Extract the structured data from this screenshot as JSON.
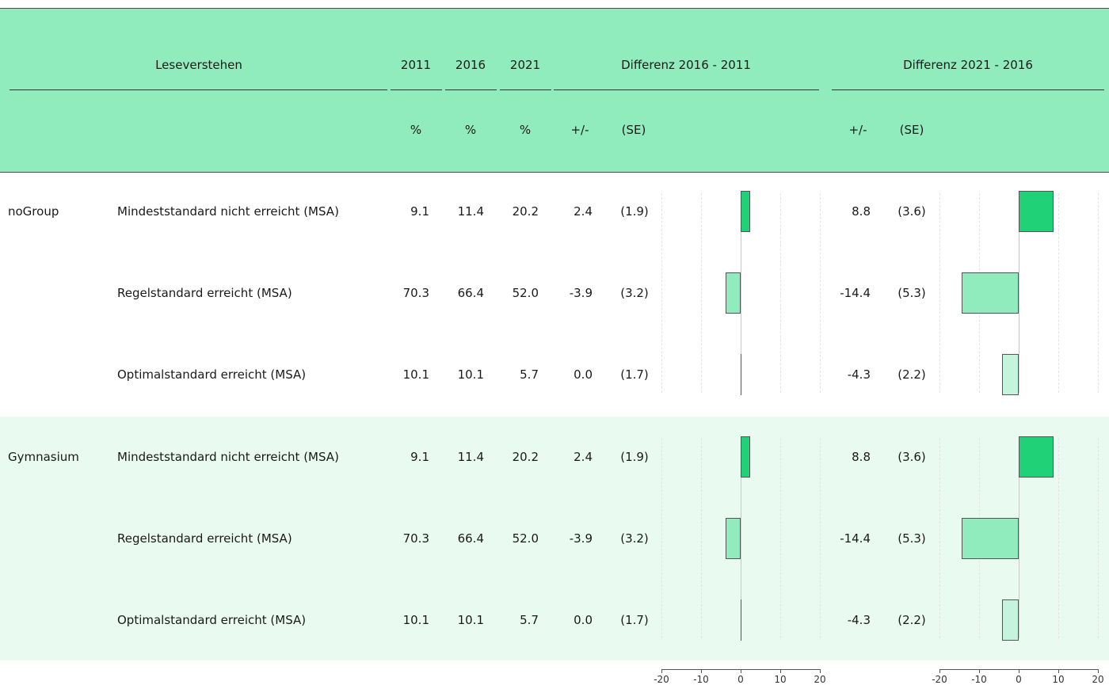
{
  "header": {
    "title": "Leseverstehen",
    "years": [
      "2011",
      "2016",
      "2021"
    ],
    "diff1_title": "Differenz 2016 - 2011",
    "diff2_title": "Differenz 2021 - 2016",
    "unit_pct": "%",
    "unit_diff": "+/-",
    "unit_se": "(SE)"
  },
  "colors": {
    "header_bg": "#90ebbd",
    "group_alt_bg": "#e9faf1",
    "bar_significant_up": "#20d178",
    "bar_significant_down": "#90ebbd",
    "bar_not_significant": "#c4f5dc"
  },
  "groups": [
    {
      "name": "noGroup",
      "rows": [
        {
          "label": "Mindeststandard nicht erreicht (MSA)",
          "y2011": "9.1",
          "y2016": "11.4",
          "y2021": "20.2",
          "d1": "2.4",
          "se1": "(1.9)",
          "d2": "8.8",
          "se2": "(3.6)"
        },
        {
          "label": "Regelstandard erreicht (MSA)",
          "y2011": "70.3",
          "y2016": "66.4",
          "y2021": "52.0",
          "d1": "-3.9",
          "se1": "(3.2)",
          "d2": "-14.4",
          "se2": "(5.3)"
        },
        {
          "label": "Optimalstandard erreicht (MSA)",
          "y2011": "10.1",
          "y2016": "10.1",
          "y2021": "5.7",
          "d1": "0.0",
          "se1": "(1.7)",
          "d2": "-4.3",
          "se2": "(2.2)"
        }
      ]
    },
    {
      "name": "Gymnasium",
      "rows": [
        {
          "label": "Mindeststandard nicht erreicht (MSA)",
          "y2011": "9.1",
          "y2016": "11.4",
          "y2021": "20.2",
          "d1": "2.4",
          "se1": "(1.9)",
          "d2": "8.8",
          "se2": "(3.6)"
        },
        {
          "label": "Regelstandard erreicht (MSA)",
          "y2011": "70.3",
          "y2016": "66.4",
          "y2021": "52.0",
          "d1": "-3.9",
          "se1": "(3.2)",
          "d2": "-14.4",
          "se2": "(5.3)"
        },
        {
          "label": "Optimalstandard erreicht (MSA)",
          "y2011": "10.1",
          "y2016": "10.1",
          "y2021": "5.7",
          "d1": "0.0",
          "se1": "(1.7)",
          "d2": "-4.3",
          "se2": "(2.2)"
        }
      ]
    }
  ],
  "chart_data": [
    {
      "type": "bar",
      "orientation": "horizontal",
      "title": "Differenz 2016 - 2011",
      "categories": [
        "noGroup - Mindeststandard nicht erreicht (MSA)",
        "noGroup - Regelstandard erreicht (MSA)",
        "noGroup - Optimalstandard erreicht (MSA)",
        "Gymnasium - Mindeststandard nicht erreicht (MSA)",
        "Gymnasium - Regelstandard erreicht (MSA)",
        "Gymnasium - Optimalstandard erreicht (MSA)"
      ],
      "values": [
        2.4,
        -3.9,
        0.0,
        2.4,
        -3.9,
        0.0
      ],
      "colors": [
        "#20d178",
        "#90ebbd",
        "#c4f5dc",
        "#20d178",
        "#90ebbd",
        "#c4f5dc"
      ],
      "xlim": [
        -20,
        20
      ],
      "xticks": [
        "-20",
        "-10",
        "0",
        "10",
        "20"
      ]
    },
    {
      "type": "bar",
      "orientation": "horizontal",
      "title": "Differenz 2021 - 2016",
      "categories": [
        "noGroup - Mindeststandard nicht erreicht (MSA)",
        "noGroup - Regelstandard erreicht (MSA)",
        "noGroup - Optimalstandard erreicht (MSA)",
        "Gymnasium - Mindeststandard nicht erreicht (MSA)",
        "Gymnasium - Regelstandard erreicht (MSA)",
        "Gymnasium - Optimalstandard erreicht (MSA)"
      ],
      "values": [
        8.8,
        -14.4,
        -4.3,
        8.8,
        -14.4,
        -4.3
      ],
      "colors": [
        "#20d178",
        "#90ebbd",
        "#c4f5dc",
        "#20d178",
        "#90ebbd",
        "#c4f5dc"
      ],
      "xlim": [
        -20,
        20
      ],
      "xticks": [
        "-20",
        "-10",
        "0",
        "10",
        "20"
      ]
    }
  ]
}
